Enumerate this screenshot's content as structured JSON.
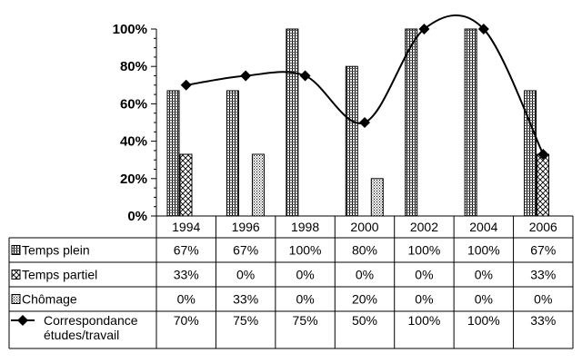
{
  "chart_data": {
    "type": "bar",
    "categories": [
      "1994",
      "1996",
      "1998",
      "2000",
      "2002",
      "2004",
      "2006"
    ],
    "ylim": [
      0,
      100
    ],
    "yticks": [
      "0%",
      "20%",
      "40%",
      "60%",
      "80%",
      "100%"
    ],
    "grid": false,
    "legend": "data-table-left",
    "series": [
      {
        "name": "Temps plein",
        "kind": "bar",
        "values": [
          67,
          67,
          100,
          80,
          100,
          100,
          67
        ],
        "labels": [
          "67%",
          "67%",
          "100%",
          "80%",
          "100%",
          "100%",
          "67%"
        ]
      },
      {
        "name": "Temps partiel",
        "kind": "bar",
        "values": [
          33,
          0,
          0,
          0,
          0,
          0,
          33
        ],
        "labels": [
          "33%",
          "0%",
          "0%",
          "0%",
          "0%",
          "0%",
          "33%"
        ]
      },
      {
        "name": "Chômage",
        "kind": "bar",
        "values": [
          0,
          33,
          0,
          20,
          0,
          0,
          0
        ],
        "labels": [
          "0%",
          "33%",
          "0%",
          "20%",
          "0%",
          "0%",
          "0%"
        ]
      },
      {
        "name_lines": [
          "Correspondance",
          "études/travail"
        ],
        "kind": "line",
        "values": [
          70,
          75,
          75,
          50,
          100,
          100,
          33
        ],
        "labels": [
          "70%",
          "75%",
          "75%",
          "50%",
          "100%",
          "100%",
          "33%"
        ]
      }
    ]
  }
}
